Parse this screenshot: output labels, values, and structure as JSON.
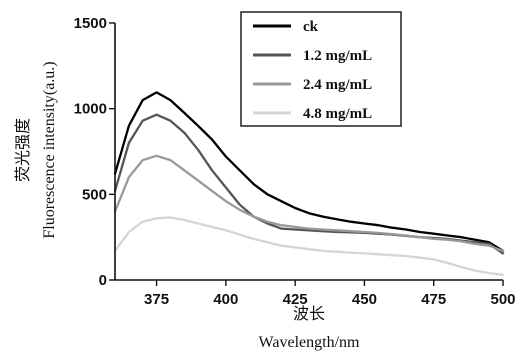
{
  "chart_data": {
    "type": "line",
    "title": "",
    "xlabel_cn": "波长",
    "xlabel": "Wavelength/nm",
    "ylabel_cn": "荧光强度",
    "ylabel": "Fluorescence intensity(a.u.)",
    "xlim": [
      360,
      500
    ],
    "ylim": [
      0,
      1500
    ],
    "xticks": [
      "375",
      "400",
      "425",
      "450",
      "475",
      "500"
    ],
    "yticks": [
      "0",
      "500",
      "1000",
      "1500"
    ],
    "legend_position": "top-right",
    "grid": false,
    "series": [
      {
        "name": "ck",
        "color": "#000000",
        "x": [
          360,
          365,
          370,
          375,
          380,
          385,
          390,
          395,
          400,
          405,
          410,
          415,
          420,
          425,
          430,
          435,
          440,
          445,
          450,
          455,
          460,
          465,
          470,
          475,
          480,
          485,
          490,
          495,
          500
        ],
        "values": [
          620,
          900,
          1050,
          1095,
          1050,
          975,
          900,
          820,
          720,
          640,
          560,
          500,
          460,
          420,
          390,
          370,
          355,
          340,
          330,
          320,
          305,
          295,
          280,
          270,
          260,
          250,
          235,
          220,
          170
        ]
      },
      {
        "name": "1.2 mg/mL",
        "color": "#555555",
        "x": [
          360,
          365,
          370,
          375,
          380,
          385,
          390,
          395,
          400,
          405,
          410,
          415,
          420,
          425,
          430,
          435,
          440,
          445,
          450,
          455,
          460,
          465,
          470,
          475,
          480,
          485,
          490,
          495,
          500
        ],
        "values": [
          520,
          800,
          930,
          965,
          930,
          860,
          760,
          640,
          540,
          440,
          370,
          330,
          300,
          295,
          290,
          285,
          280,
          278,
          275,
          270,
          265,
          258,
          250,
          245,
          240,
          230,
          220,
          210,
          155
        ]
      },
      {
        "name": "2.4 mg/mL",
        "color": "#999999",
        "x": [
          360,
          365,
          370,
          375,
          380,
          385,
          390,
          395,
          400,
          405,
          410,
          415,
          420,
          425,
          430,
          435,
          440,
          445,
          450,
          455,
          460,
          465,
          470,
          475,
          480,
          485,
          490,
          495,
          500
        ],
        "values": [
          400,
          600,
          700,
          725,
          700,
          640,
          580,
          520,
          460,
          410,
          370,
          340,
          320,
          310,
          300,
          295,
          290,
          285,
          280,
          275,
          268,
          260,
          250,
          240,
          235,
          225,
          210,
          200,
          170
        ]
      },
      {
        "name": "4.8 mg/mL",
        "color": "#d5d5d5",
        "x": [
          360,
          365,
          370,
          375,
          380,
          385,
          390,
          395,
          400,
          405,
          410,
          415,
          420,
          425,
          430,
          435,
          440,
          445,
          450,
          455,
          460,
          465,
          470,
          475,
          480,
          485,
          490,
          495,
          500
        ],
        "values": [
          170,
          280,
          340,
          360,
          365,
          350,
          330,
          310,
          290,
          265,
          240,
          220,
          200,
          190,
          180,
          170,
          165,
          160,
          155,
          150,
          145,
          140,
          130,
          120,
          100,
          75,
          55,
          40,
          30
        ]
      }
    ]
  }
}
